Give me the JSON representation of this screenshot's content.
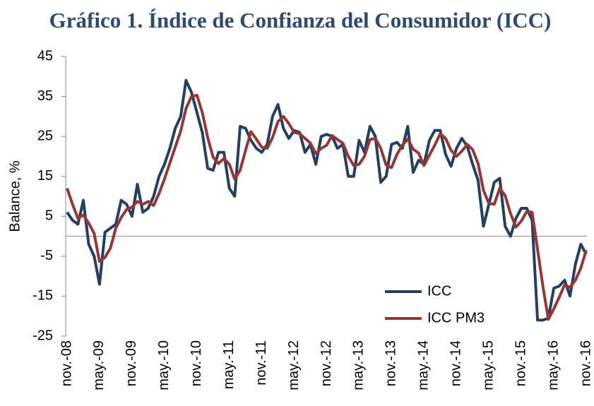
{
  "chart_data": {
    "type": "line",
    "title": "Gráfico 1. Índice de Confianza del Consumidor (ICC)",
    "ylabel": "Balance, %",
    "categories": [
      "nov.-08",
      null,
      null,
      null,
      null,
      null,
      "may.-09",
      null,
      null,
      null,
      null,
      null,
      "nov.-09",
      null,
      null,
      null,
      null,
      null,
      "may.-10",
      null,
      null,
      null,
      null,
      null,
      "nov.-10",
      null,
      null,
      null,
      null,
      null,
      "may.-11",
      null,
      null,
      null,
      null,
      null,
      "nov.-11",
      null,
      null,
      null,
      null,
      null,
      "may.-12",
      null,
      null,
      null,
      null,
      null,
      "nov.-12",
      null,
      null,
      null,
      null,
      null,
      "may.-13",
      null,
      null,
      null,
      null,
      null,
      "nov.-13",
      null,
      null,
      null,
      null,
      null,
      "may.-14",
      null,
      null,
      null,
      null,
      null,
      "nov.-14",
      null,
      null,
      null,
      null,
      null,
      "may.-15",
      null,
      null,
      null,
      null,
      null,
      "nov.-15",
      null,
      null,
      null,
      null,
      null,
      "may.-16",
      null,
      null,
      null,
      null,
      null,
      "nov.-16"
    ],
    "series": [
      {
        "name": "ICC",
        "color": "#243f60",
        "values": [
          6,
          4,
          3,
          9,
          -2,
          -5,
          -12,
          1,
          2,
          3,
          9,
          8,
          5,
          13,
          6,
          7,
          10,
          15,
          18,
          22,
          27,
          30,
          39,
          36,
          31,
          26,
          17,
          16.5,
          21,
          21,
          12,
          10,
          27.5,
          27,
          24,
          22,
          21,
          23,
          30,
          33,
          27,
          24.5,
          26.5,
          26,
          21,
          23,
          18,
          25,
          25.5,
          25,
          22,
          23,
          15,
          15,
          24,
          21,
          27.5,
          25,
          13.5,
          15,
          23,
          23.5,
          22,
          27.5,
          16,
          19,
          18,
          24,
          26.5,
          26.5,
          20.5,
          17.5,
          22,
          24.5,
          22.5,
          18,
          14,
          2.5,
          8,
          13.5,
          14.5,
          2.5,
          0,
          4.5,
          7,
          7,
          4,
          -21,
          -21,
          -20.5,
          -13,
          -12.5,
          -11,
          -15,
          -7,
          -2,
          -4.5
        ]
      },
      {
        "name": "ICC PM3",
        "color": "#953735",
        "values": [
          12,
          8,
          4.5,
          5.3,
          3.3,
          0.7,
          -6.3,
          -5.3,
          -3,
          2,
          4.7,
          6.7,
          7.3,
          8.7,
          8,
          8.7,
          7.7,
          10.7,
          14.3,
          18.3,
          22.3,
          26.3,
          32,
          35,
          35.3,
          31,
          24.7,
          19.8,
          18.2,
          19.5,
          18,
          14.3,
          16.5,
          21.5,
          26.2,
          24.3,
          22.3,
          22,
          24.7,
          28.7,
          30,
          28.2,
          26,
          25.7,
          24.5,
          23.3,
          20.7,
          22,
          22.8,
          25.2,
          24.2,
          23.3,
          20,
          17.7,
          18,
          20,
          24.2,
          24.5,
          22,
          17.8,
          17.2,
          20.5,
          22.8,
          24.3,
          21.8,
          20.8,
          17.7,
          20.3,
          22.8,
          25.7,
          24.5,
          21.5,
          20,
          21.3,
          23,
          21.7,
          18.2,
          11.5,
          8.2,
          8,
          12,
          10.2,
          5.7,
          2.3,
          3.8,
          6.2,
          6,
          -3.3,
          -12.7,
          -20.8,
          -18.2,
          -15.3,
          -12.2,
          -12.8,
          -11,
          -8,
          -3.5
        ]
      }
    ],
    "ylim": [
      -25,
      45
    ],
    "yticks": [
      -25,
      -15,
      -5,
      5,
      15,
      25,
      35,
      45
    ],
    "zero_line": true,
    "legend": "lower right"
  }
}
